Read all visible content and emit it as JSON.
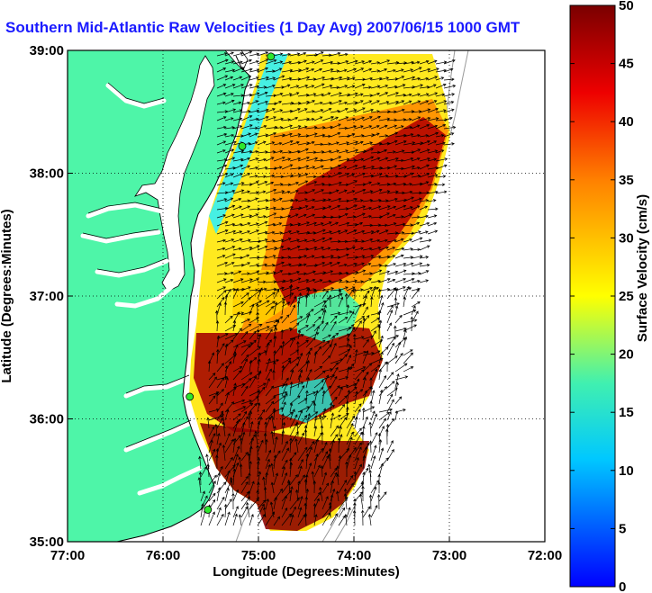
{
  "title": "Southern Mid-Atlantic Raw Velocities (1 Day Avg) 2007/06/15 1000 GMT",
  "chart_data": {
    "type": "map",
    "xlabel": "Longitude (Degrees:Minutes)",
    "ylabel": "Latitude (Degrees:Minutes)",
    "x_ticks": [
      "77:00",
      "76:00",
      "75:00",
      "74:00",
      "73:00",
      "72:00"
    ],
    "y_ticks": [
      "39:00",
      "38:00",
      "37:00",
      "36:00",
      "35:00"
    ],
    "xlim": [
      -77,
      -72
    ],
    "ylim": [
      35,
      39
    ],
    "grid": "dotted",
    "colorbar": {
      "label": "Surface Velocity (cm/s)",
      "min": 0,
      "max": 50,
      "ticks": [
        "0",
        "5",
        "10",
        "15",
        "20",
        "25",
        "30",
        "35",
        "40",
        "45",
        "50"
      ],
      "colormap": "jet"
    },
    "land_color": "#4ef5a8",
    "water_color": "#ffffff",
    "hf_radar_sites": [
      {
        "lon": -74.87,
        "lat": 38.95
      },
      {
        "lon": -75.17,
        "lat": 38.22
      },
      {
        "lon": -75.72,
        "lat": 36.18
      },
      {
        "lon": -75.53,
        "lat": 35.26
      }
    ]
  }
}
